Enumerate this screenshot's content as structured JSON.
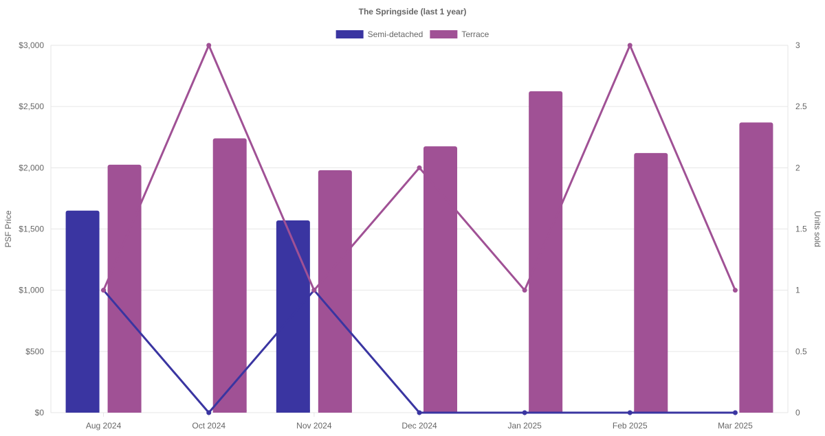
{
  "chart_data": {
    "type": "bar",
    "title": "The Springside (last 1 year)",
    "categories": [
      "Aug 2024",
      "Oct 2024",
      "Nov 2024",
      "Dec 2024",
      "Jan 2025",
      "Feb 2025",
      "Mar 2025"
    ],
    "y_left": {
      "label": "PSF Price",
      "ylim": [
        0,
        3000
      ],
      "ticks": [
        0,
        500,
        1000,
        1500,
        2000,
        2500,
        3000
      ],
      "tick_labels": [
        "$0",
        "$500",
        "$1,000",
        "$1,500",
        "$2,000",
        "$2,500",
        "$3,000"
      ]
    },
    "y_right": {
      "label": "Units sold",
      "ylim": [
        0,
        3
      ],
      "ticks": [
        0,
        0.5,
        1,
        1.5,
        2,
        2.5,
        3
      ],
      "tick_labels": [
        "0",
        "0.5",
        "1",
        "1.5",
        "2",
        "2.5",
        "3"
      ]
    },
    "grid": true,
    "legend_position": "top-center",
    "series": [
      {
        "name": "Semi-detached",
        "kind": "bar",
        "axis": "left",
        "color": "#3a35a1",
        "values": [
          1650,
          null,
          1570,
          null,
          null,
          null,
          null
        ]
      },
      {
        "name": "Terrace",
        "kind": "bar",
        "axis": "left",
        "color": "#a05195",
        "values": [
          2025,
          2240,
          1980,
          2175,
          2625,
          2120,
          2370
        ]
      },
      {
        "name": "Semi-detached",
        "kind": "line",
        "axis": "right",
        "color": "#3a35a1",
        "values": [
          1,
          0,
          1,
          0,
          0,
          0,
          0
        ]
      },
      {
        "name": "Terrace",
        "kind": "line",
        "axis": "right",
        "color": "#a05195",
        "values": [
          1,
          3,
          1,
          2,
          1,
          3,
          1
        ]
      }
    ]
  }
}
